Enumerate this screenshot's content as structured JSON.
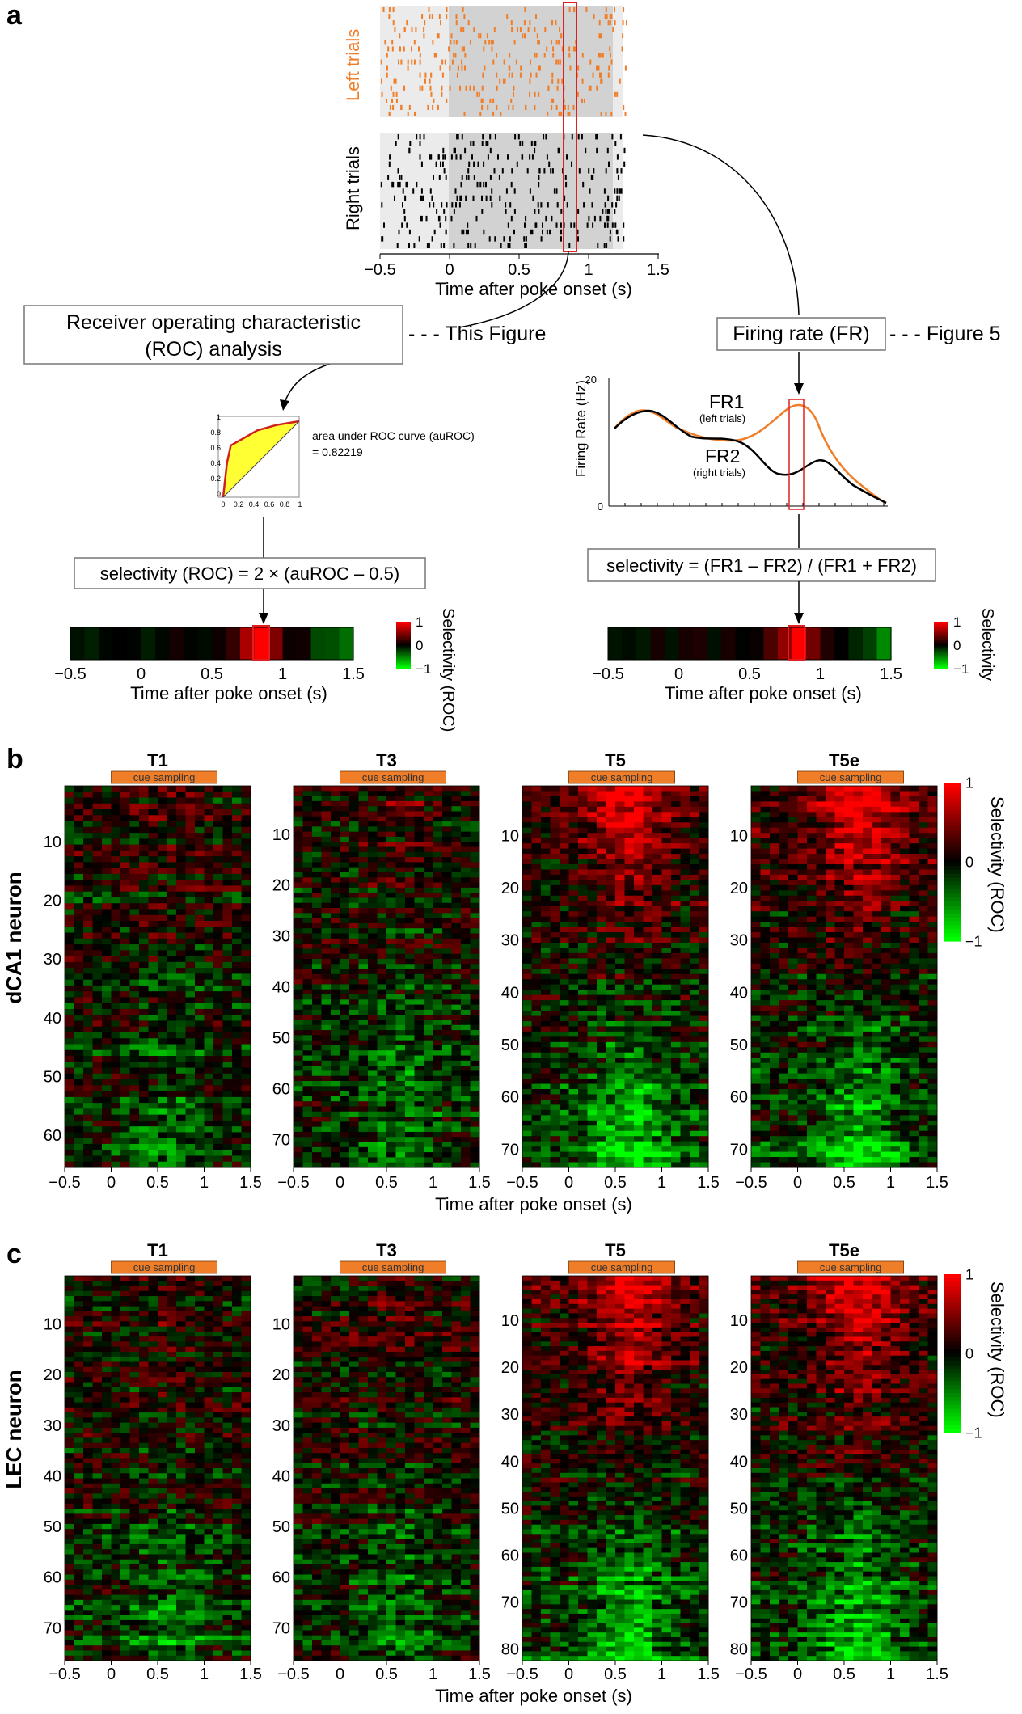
{
  "panels": {
    "a": "a",
    "b": "b",
    "c": "c"
  },
  "panel_a": {
    "raster": {
      "left_label": "Left trials",
      "right_label": "Right trials",
      "xlabel": "Time after poke onset (s)",
      "xticks": [
        "−0.5",
        "0",
        "0.5",
        "1",
        "1.5"
      ],
      "left_color": "#f07d28",
      "right_color": "#000000"
    },
    "roc_box": {
      "line1": "Receiver operating characteristic",
      "line2": "(ROC) analysis"
    },
    "this_figure": "- - - This Figure",
    "fr_box": "Firing rate (FR)",
    "figure5": "- - - Figure 5",
    "roc_plot": {
      "text1": "area under ROC curve (auROC)",
      "text2": "= 0.82219",
      "yticks": [
        "1",
        "0.8",
        "0.6",
        "0.4",
        "0.2",
        "0"
      ],
      "xticks": [
        "0",
        "0.2",
        "0.4",
        "0.6",
        "0.8",
        "1"
      ],
      "curve_x": [
        0,
        0.05,
        0.1,
        0.45,
        0.7,
        1.0
      ],
      "curve_y": [
        0,
        0.45,
        0.68,
        0.88,
        0.95,
        1.0
      ]
    },
    "fr_plot": {
      "ylabel": "Firing Rate (Hz)",
      "yticks": [
        "20",
        "0"
      ],
      "fr1": "FR1",
      "fr1_sub": "(left trials)",
      "fr2": "FR2",
      "fr2_sub": "(right trials)"
    },
    "sel_roc_formula": "selectivity (ROC) = 2 × (auROC – 0.5)",
    "sel_fr_formula": "selectivity = (FR1 – FR2) / (FR1 + FR2)",
    "bar_xlabel": "Time after poke onset (s)",
    "bar_xticks": [
      "−0.5",
      "0",
      "0.5",
      "1",
      "1.5"
    ],
    "colorbar_ticks": [
      "1",
      "0",
      "−1"
    ],
    "sel_label_roc": "Selectivity (ROC)",
    "sel_label": "Selectivity"
  },
  "panel_b": {
    "ylabel": "dCA1 neuron",
    "xlabel": "Time after poke onset (s)",
    "cue": "cue sampling",
    "colorbar_label": "Selectivity (ROC)",
    "colorbar_ticks": [
      "1",
      "0",
      "−1"
    ]
  },
  "panel_c": {
    "ylabel": "LEC neuron",
    "xlabel": "Time after poke onset (s)",
    "cue": "cue sampling",
    "colorbar_label": "Selectivity (ROC)",
    "colorbar_ticks": [
      "1",
      "0",
      "−1"
    ]
  },
  "chart_data": [
    {
      "type": "heatmap",
      "title": "T1",
      "region": "dCA1",
      "x": [
        -0.5,
        1.5
      ],
      "xticks": [
        "−0.5",
        "0",
        "0.5",
        "1",
        "1.5"
      ],
      "yticks": [
        "10",
        "20",
        "30",
        "40",
        "50",
        "60"
      ],
      "n_neurons": 65,
      "colorscale": {
        "min": -1,
        "max": 1,
        "low": "#00ff00",
        "mid": "#000000",
        "high": "#ff0000"
      }
    },
    {
      "type": "heatmap",
      "title": "T3",
      "region": "dCA1",
      "x": [
        -0.5,
        1.5
      ],
      "xticks": [
        "−0.5",
        "0",
        "0.5",
        "1",
        "1.5"
      ],
      "yticks": [
        "10",
        "20",
        "30",
        "40",
        "50",
        "60",
        "70"
      ],
      "n_neurons": 75,
      "colorscale": {
        "min": -1,
        "max": 1,
        "low": "#00ff00",
        "mid": "#000000",
        "high": "#ff0000"
      }
    },
    {
      "type": "heatmap",
      "title": "T5",
      "region": "dCA1",
      "x": [
        -0.5,
        1.5
      ],
      "xticks": [
        "−0.5",
        "0",
        "0.5",
        "1",
        "1.5"
      ],
      "yticks": [
        "10",
        "20",
        "30",
        "40",
        "50",
        "60",
        "70"
      ],
      "n_neurons": 73,
      "colorscale": {
        "min": -1,
        "max": 1,
        "low": "#00ff00",
        "mid": "#000000",
        "high": "#ff0000"
      }
    },
    {
      "type": "heatmap",
      "title": "T5e",
      "region": "dCA1",
      "x": [
        -0.5,
        1.5
      ],
      "xticks": [
        "−0.5",
        "0",
        "0.5",
        "1",
        "1.5"
      ],
      "yticks": [
        "10",
        "20",
        "30",
        "40",
        "50",
        "60",
        "70"
      ],
      "n_neurons": 73,
      "colorscale": {
        "min": -1,
        "max": 1,
        "low": "#00ff00",
        "mid": "#000000",
        "high": "#ff0000"
      }
    },
    {
      "type": "heatmap",
      "title": "T1",
      "region": "LEC",
      "x": [
        -0.5,
        1.5
      ],
      "xticks": [
        "−0.5",
        "0",
        "0.5",
        "1",
        "1.5"
      ],
      "yticks": [
        "10",
        "20",
        "30",
        "40",
        "50",
        "60",
        "70"
      ],
      "n_neurons": 76,
      "colorscale": {
        "min": -1,
        "max": 1,
        "low": "#00ff00",
        "mid": "#000000",
        "high": "#ff0000"
      }
    },
    {
      "type": "heatmap",
      "title": "T3",
      "region": "LEC",
      "x": [
        -0.5,
        1.5
      ],
      "xticks": [
        "−0.5",
        "0",
        "0.5",
        "1",
        "1.5"
      ],
      "yticks": [
        "10",
        "20",
        "30",
        "40",
        "50",
        "60",
        "70"
      ],
      "n_neurons": 76,
      "colorscale": {
        "min": -1,
        "max": 1,
        "low": "#00ff00",
        "mid": "#000000",
        "high": "#ff0000"
      }
    },
    {
      "type": "heatmap",
      "title": "T5",
      "region": "LEC",
      "x": [
        -0.5,
        1.5
      ],
      "xticks": [
        "−0.5",
        "0",
        "0.5",
        "1",
        "1.5"
      ],
      "yticks": [
        "10",
        "20",
        "30",
        "40",
        "50",
        "60",
        "70",
        "80"
      ],
      "n_neurons": 82,
      "colorscale": {
        "min": -1,
        "max": 1,
        "low": "#00ff00",
        "mid": "#000000",
        "high": "#ff0000"
      }
    },
    {
      "type": "heatmap",
      "title": "T5e",
      "region": "LEC",
      "x": [
        -0.5,
        1.5
      ],
      "xticks": [
        "−0.5",
        "0",
        "0.5",
        "1",
        "1.5"
      ],
      "yticks": [
        "10",
        "20",
        "30",
        "40",
        "50",
        "60",
        "70",
        "80"
      ],
      "n_neurons": 82,
      "colorscale": {
        "min": -1,
        "max": 1,
        "low": "#00ff00",
        "mid": "#000000",
        "high": "#ff0000"
      }
    }
  ]
}
